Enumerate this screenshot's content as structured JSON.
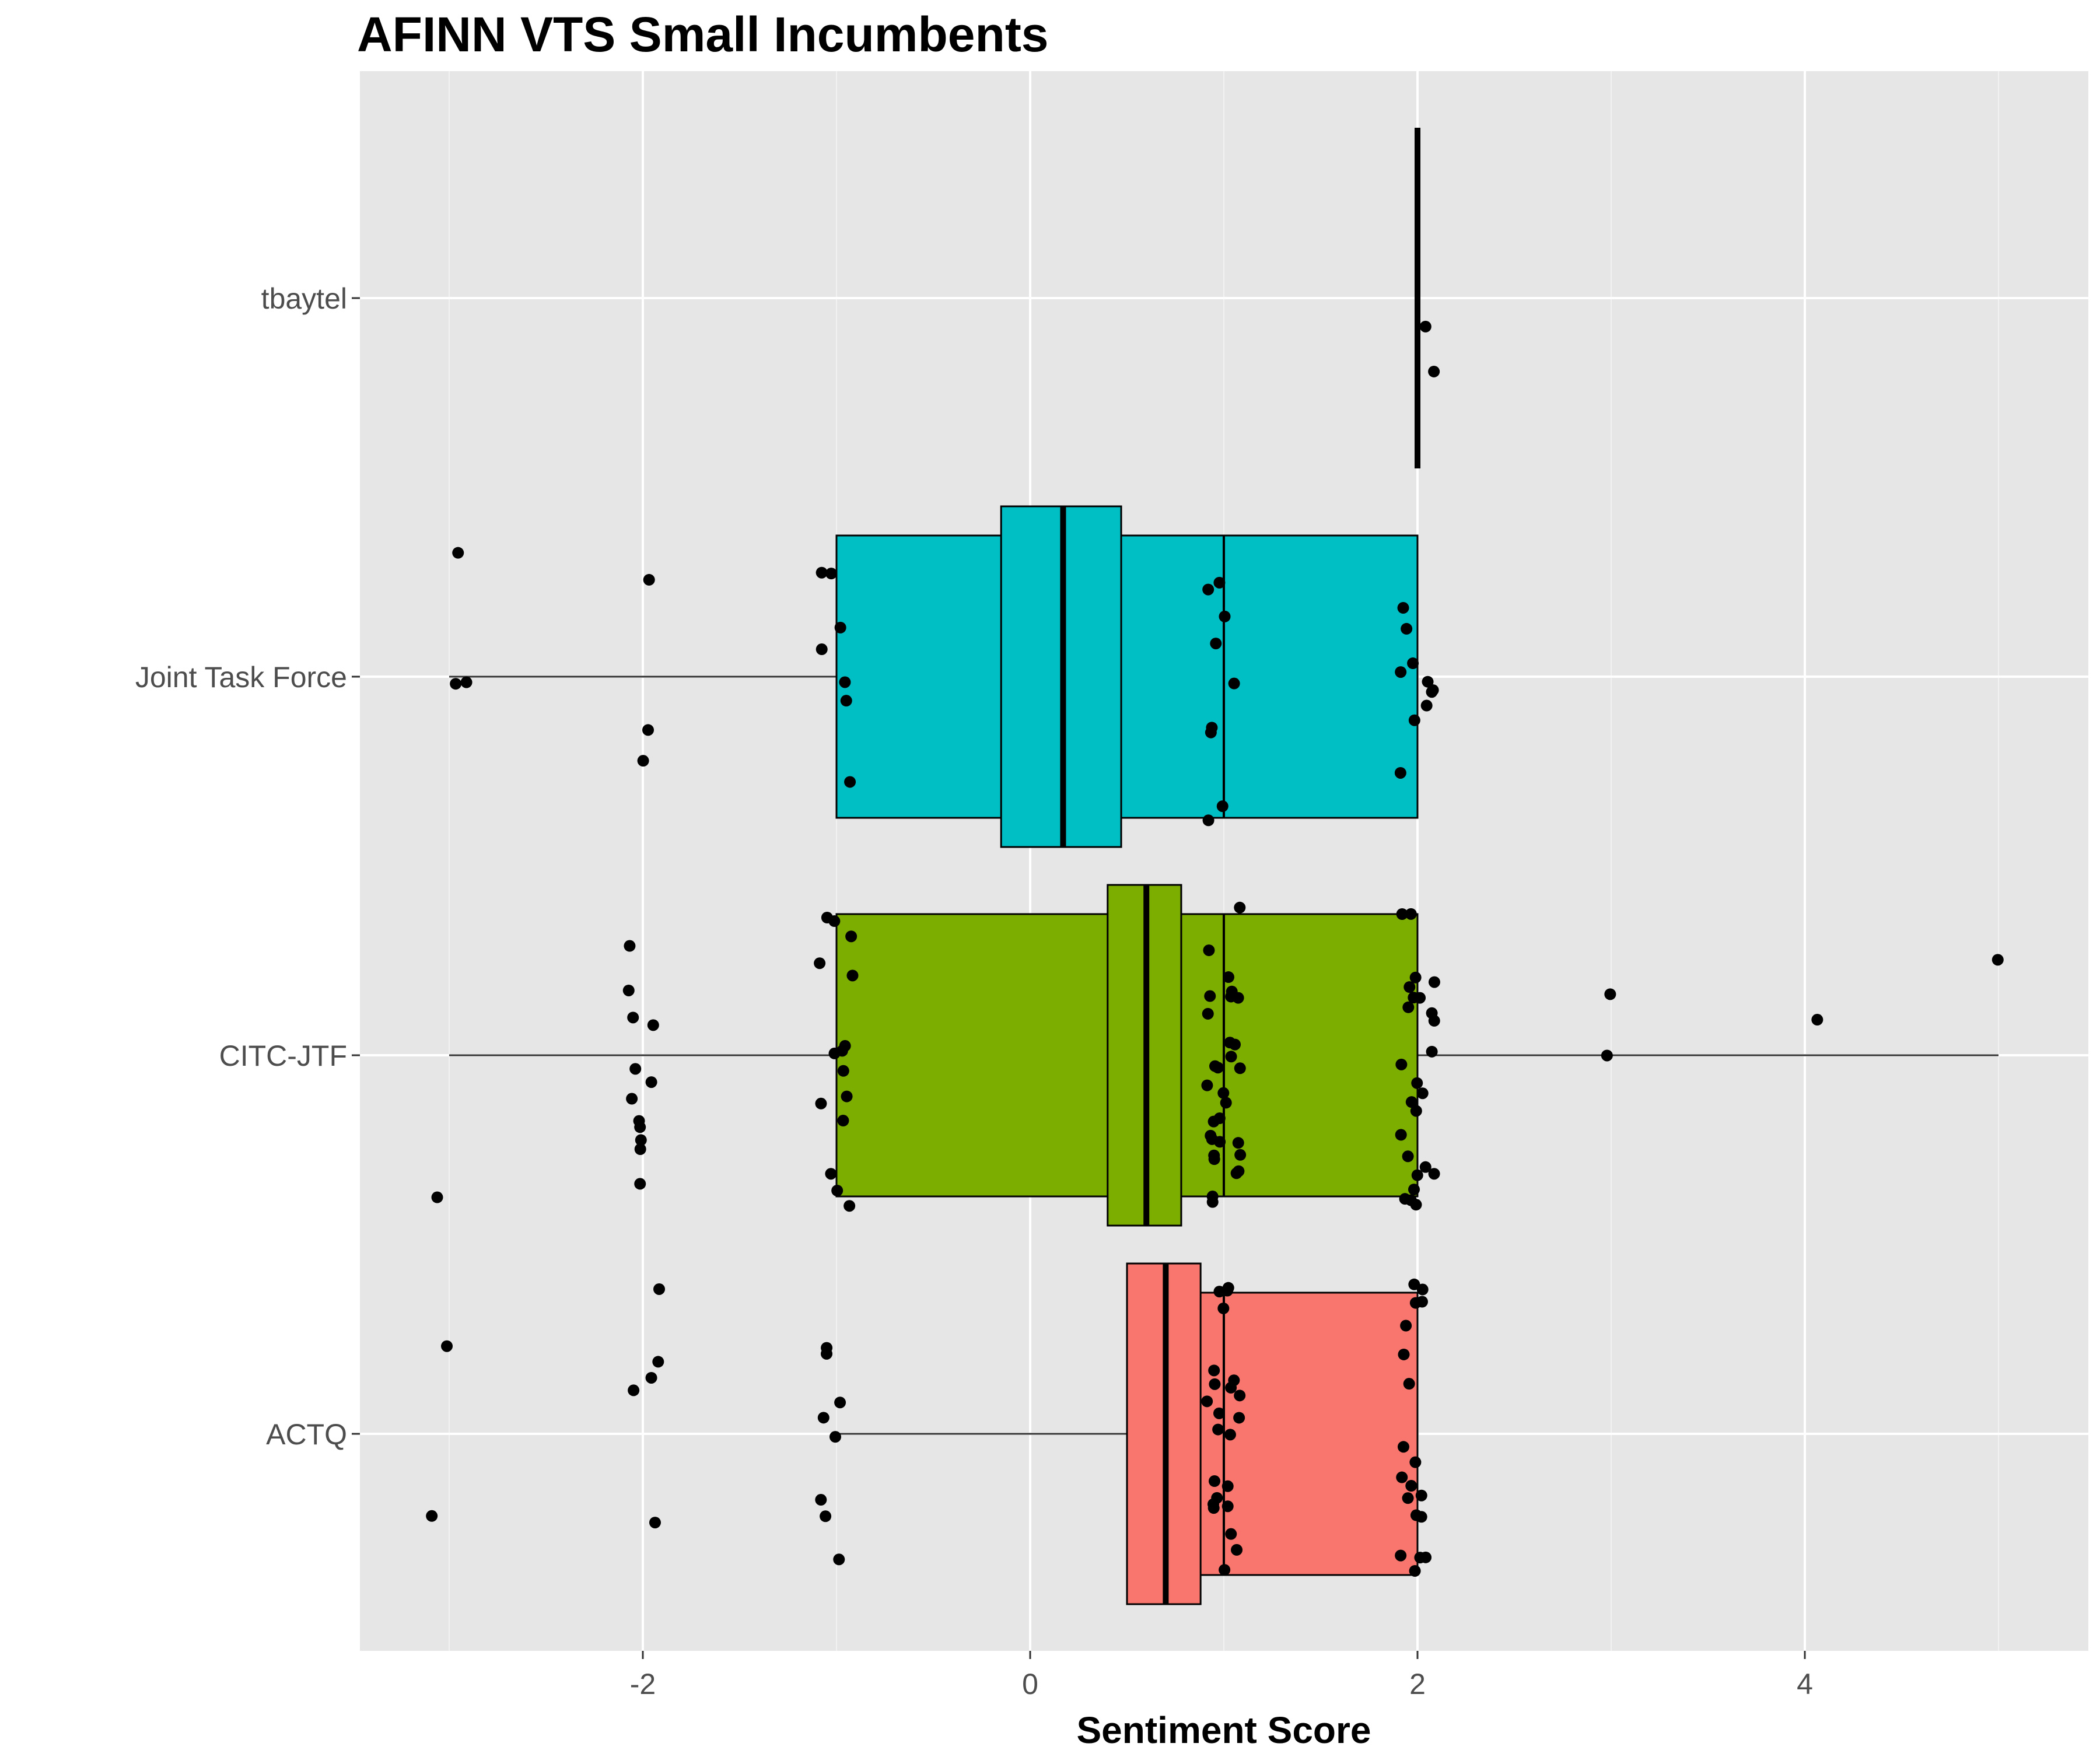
{
  "chart_data": {
    "type": "boxplot",
    "title": "AFINN VTS Small Incumbents",
    "xlabel": "Sentiment Score",
    "ylabel": "",
    "xlim": [
      -3.5,
      5.5
    ],
    "x_ticks": [
      -2,
      0,
      2,
      4
    ],
    "x_tick_labels": [
      "-2",
      "0",
      "2",
      "4"
    ],
    "grid": true,
    "orientation": "horizontal",
    "notched": true,
    "categories": [
      "ACTQ",
      "CITC-JTF",
      "Joint Task Force",
      "tbaytel"
    ],
    "series": [
      {
        "category": "ACTQ",
        "color": "#F8766D",
        "min": -1,
        "q1": 0.5,
        "median": 0.7,
        "q3": 2,
        "max": 2,
        "notch_low": 0.5,
        "notch_high": 0.88,
        "outliers": [
          -3,
          -3,
          -2,
          -2,
          -2,
          -2,
          -2
        ],
        "points": [
          -3,
          -3,
          -2,
          -2,
          -2,
          -2,
          -2,
          -1,
          -1,
          -1,
          -1,
          -1,
          -1,
          -1,
          -1,
          1,
          1,
          1,
          1,
          1,
          1,
          1,
          1,
          1,
          1,
          1,
          1,
          1,
          1,
          1,
          1,
          1,
          1,
          1,
          1,
          1,
          1,
          1,
          2,
          2,
          2,
          2,
          2,
          2,
          2,
          2,
          2,
          2,
          2,
          2,
          2,
          2,
          2,
          2,
          2,
          2,
          2
        ]
      },
      {
        "category": "CITC-JTF",
        "color": "#7CAE00",
        "min": -3,
        "q1": -1,
        "median": 0.6,
        "q3": 2,
        "max": 5,
        "notch_low": 0.4,
        "notch_high": 0.78,
        "outliers": [],
        "points": [
          -3,
          -2,
          -2,
          -2,
          -2,
          -2,
          -2,
          -2,
          -2,
          -2,
          -2,
          -2,
          -2,
          -1,
          -1,
          -1,
          -1,
          -1,
          -1,
          -1,
          -1,
          -1,
          -1,
          -1,
          -1,
          -1,
          -1,
          -1,
          1,
          1,
          1,
          1,
          1,
          1,
          1,
          1,
          1,
          1,
          1,
          1,
          1,
          1,
          1,
          1,
          1,
          1,
          1,
          1,
          1,
          1,
          1,
          1,
          1,
          1,
          1,
          1,
          1,
          1,
          2,
          2,
          2,
          2,
          2,
          2,
          2,
          2,
          2,
          2,
          2,
          2,
          2,
          2,
          2,
          2,
          2,
          2,
          2,
          2,
          2,
          2,
          2,
          2,
          2,
          3,
          3,
          4,
          5
        ]
      },
      {
        "category": "Joint Task Force",
        "color": "#00BFC4",
        "min": -3,
        "q1": -1,
        "median": 0.17,
        "q3": 2,
        "max": 2,
        "notch_low": -0.15,
        "notch_high": 0.47,
        "outliers": [],
        "points": [
          -3,
          -3,
          -3,
          -2,
          -2,
          -2,
          -1,
          -1,
          -1,
          -1,
          -1,
          -1,
          -1,
          1,
          1,
          1,
          1,
          1,
          1,
          1,
          1,
          1,
          2,
          2,
          2,
          2,
          2,
          2,
          2,
          2,
          2,
          2
        ]
      },
      {
        "category": "tbaytel",
        "color": "#C77CFF",
        "min": 2,
        "q1": 2,
        "median": 2,
        "q3": 2,
        "max": 2,
        "notch_low": 2,
        "notch_high": 2,
        "outliers": [],
        "points": [
          2,
          2
        ]
      }
    ]
  }
}
